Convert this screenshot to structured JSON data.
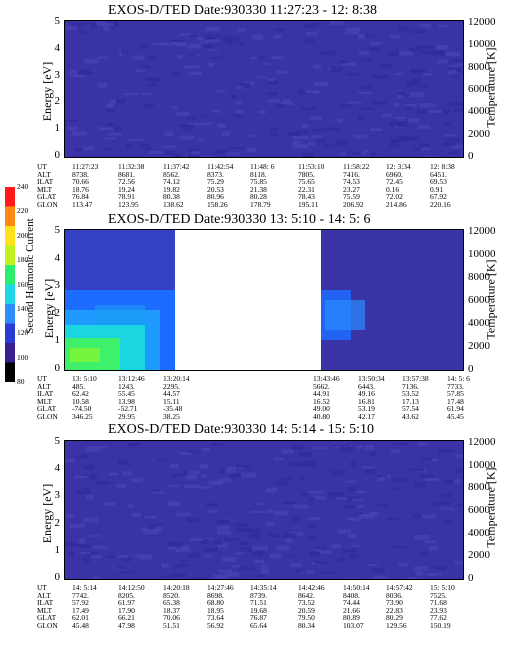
{
  "chart_data": [
    {
      "type": "heatmap",
      "title": "EXOS-D/TED   Date:930330  11:27:23 - 12: 8:38",
      "ylabel": "Energy [eV]",
      "y2label": "Temperature [K]",
      "ylim": [
        0,
        5
      ],
      "y2lim": [
        0,
        12000
      ],
      "yticks": [
        "0",
        "1",
        "2",
        "3",
        "4",
        "5"
      ],
      "y2ticks": [
        "0",
        "2000",
        "4000",
        "6000",
        "8000",
        "10000",
        "12000"
      ],
      "row_labels": [
        "UT",
        "ALT",
        "ILAT",
        "MLT",
        "GLAT",
        "GLON"
      ],
      "columns": [
        [
          "11:27:23",
          "8738.",
          "70.66",
          "18.76",
          "76.84",
          "113.47"
        ],
        [
          "11:32:38",
          "8681.",
          "72.56",
          "19.24",
          "78.91",
          "123.95"
        ],
        [
          "11:37:42",
          "8562.",
          "74.12",
          "19.82",
          "80.38",
          "138.62"
        ],
        [
          "11:42:54",
          "8373.",
          "75.29",
          "20.53",
          "80.96",
          "158.26"
        ],
        [
          "11:48: 6",
          "8118.",
          "75.85",
          "21.38",
          "80.28",
          "178.79"
        ],
        [
          "11:53:10",
          "7805.",
          "75.65",
          "22.31",
          "78.43",
          "195.11"
        ],
        [
          "11:58:22",
          "7416.",
          "74.53",
          "23.27",
          "75.59",
          "206.92"
        ],
        [
          "12: 3:34",
          "6960.",
          "72.45",
          "0.16",
          "72.02",
          "214.86"
        ],
        [
          "12: 8:38",
          "6451.",
          "69.53",
          "0.91",
          "67.92",
          "220.16"
        ]
      ]
    },
    {
      "type": "heatmap",
      "title": "EXOS-D/TED   Date:930330  13: 5:10 - 14: 5: 6",
      "ylabel": "Energy [eV]",
      "y2label": "Temperature [K]",
      "ylim": [
        0,
        5
      ],
      "y2lim": [
        0,
        12000
      ],
      "yticks": [
        "0",
        "1",
        "2",
        "3",
        "4",
        "5"
      ],
      "y2ticks": [
        "0",
        "2000",
        "4000",
        "6000",
        "8000",
        "10000",
        "12000"
      ],
      "row_labels": [
        "UT",
        "ALT",
        "ILAT",
        "MLT",
        "GLAT",
        "GLON"
      ],
      "columns": [
        [
          "13: 5:10",
          "485.",
          "62.42",
          "10.58",
          "-74.50",
          "346.25"
        ],
        [
          "13:12:46",
          "1243.",
          "55.45",
          "13.98",
          "-52.71",
          "29.95"
        ],
        [
          "13:20:14",
          "2295.",
          "44.57",
          "15.11",
          "-35.48",
          "38.25"
        ],
        [
          "13:43:46",
          "5662.",
          "44.91",
          "16.52",
          "49.00",
          "40.80"
        ],
        [
          "13:50:34",
          "6443.",
          "49.16",
          "16.81",
          "53.19",
          "42.17"
        ],
        [
          "13:57:38",
          "7136.",
          "53.52",
          "17.13",
          "57.54",
          "43.62"
        ],
        [
          "14: 5: 6",
          "7733.",
          "57.85",
          "17.48",
          "61.94",
          "45.45"
        ]
      ],
      "colorbar": {
        "label": "Second Harmonic Current",
        "ticks": [
          "80",
          "100",
          "120",
          "140",
          "160",
          "180",
          "200",
          "220",
          "240"
        ],
        "range": [
          80,
          240
        ]
      }
    },
    {
      "type": "heatmap",
      "title": "EXOS-D/TED   Date:930330  14: 5:14 - 15: 5:10",
      "ylabel": "Energy [eV]",
      "y2label": "Temperature [K]",
      "ylim": [
        0,
        5
      ],
      "y2lim": [
        0,
        12000
      ],
      "yticks": [
        "0",
        "1",
        "2",
        "3",
        "4",
        "5"
      ],
      "y2ticks": [
        "0",
        "2000",
        "4000",
        "6000",
        "8000",
        "10000",
        "12000"
      ],
      "row_labels": [
        "UT",
        "ALT",
        "ILAT",
        "MLT",
        "GLAT",
        "GLON"
      ],
      "columns": [
        [
          "14: 5:14",
          "7742.",
          "57.92",
          "17.49",
          "62.01",
          "45.48"
        ],
        [
          "14:12:50",
          "8205.",
          "61.97",
          "17.90",
          "66.21",
          "47.98"
        ],
        [
          "14:20:18",
          "8520.",
          "65.38",
          "18.37",
          "70.06",
          "51.51"
        ],
        [
          "14:27:46",
          "8698.",
          "68.80",
          "18.95",
          "73.64",
          "56.92"
        ],
        [
          "14:35:14",
          "8739.",
          "71.51",
          "19.68",
          "76.87",
          "65.64"
        ],
        [
          "14:42:46",
          "8642.",
          "73.52",
          "20.59",
          "79.50",
          "80.34"
        ],
        [
          "14:50:14",
          "8408.",
          "74.44",
          "21.66",
          "80.89",
          "103.07"
        ],
        [
          "14:57:42",
          "8036.",
          "73.90",
          "22.83",
          "80.29",
          "129.56"
        ],
        [
          "15: 5:10",
          "7525.",
          "71.68",
          "23.93",
          "77.62",
          "150.19"
        ]
      ]
    }
  ]
}
